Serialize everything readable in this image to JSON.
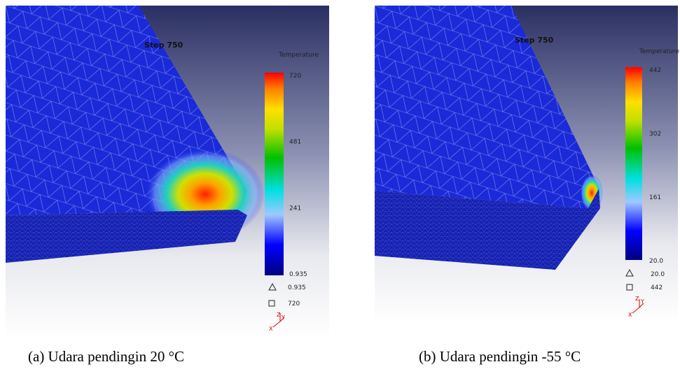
{
  "panels": [
    {
      "step": "Step 750",
      "legend_title": "Temperature",
      "scale_labels": [
        "720",
        "481",
        "241",
        "0.935"
      ],
      "min_label": "0.935",
      "max_label": "720",
      "axes": [
        "Z",
        "Y",
        "X"
      ],
      "caption": "(a)  Udara pendingin 20 °C"
    },
    {
      "step": "Step 750",
      "legend_title": "Temperature",
      "scale_labels": [
        "442",
        "302",
        "161",
        "20.0"
      ],
      "min_label": "20.0",
      "max_label": "442",
      "axes": [
        "Z",
        "Y",
        "X"
      ],
      "caption": "(b)  Udara pendingin -55 °C"
    }
  ]
}
